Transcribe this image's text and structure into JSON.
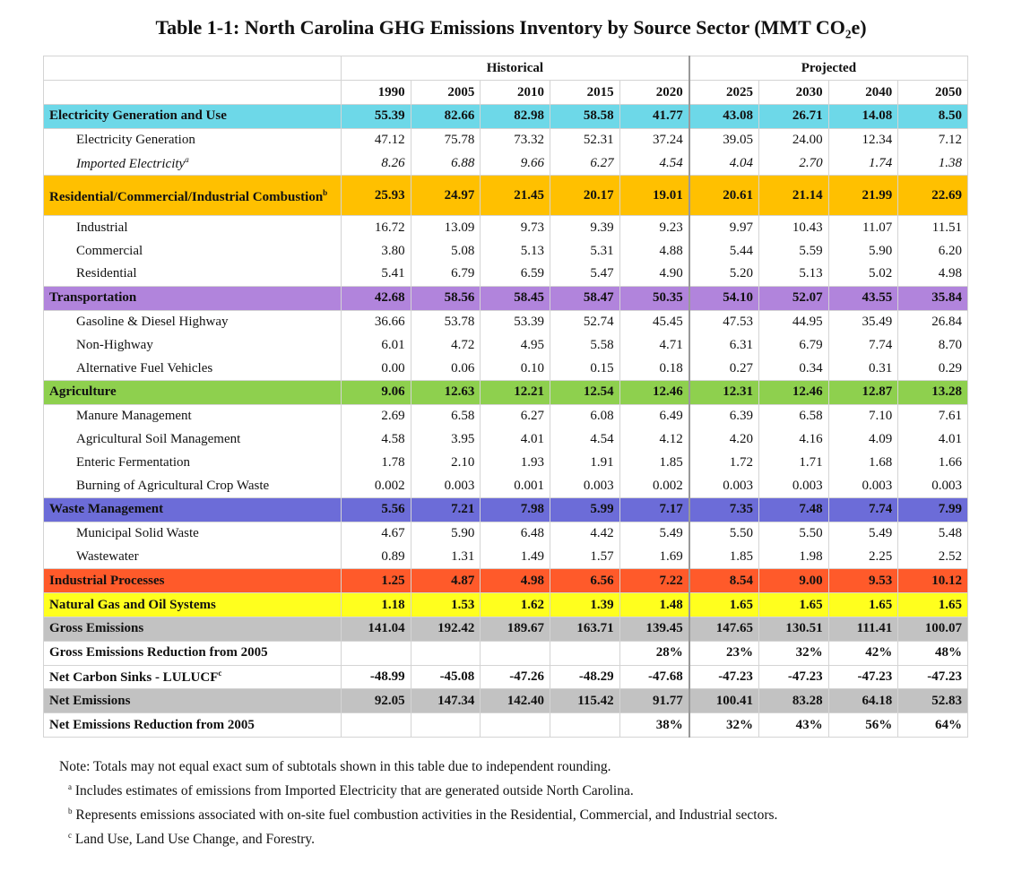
{
  "title": "Table 1-1:  North Carolina GHG Emissions Inventory by Source Sector (MMT CO₂e)",
  "groups": {
    "historical": "Historical",
    "projected": "Projected"
  },
  "years": [
    "1990",
    "2005",
    "2010",
    "2015",
    "2020",
    "2025",
    "2030",
    "2040",
    "2050"
  ],
  "colors": {
    "electricity": "#6dd8e8",
    "combustion": "#ffc000",
    "transportation": "#b184dc",
    "agriculture": "#8ed04e",
    "waste": "#6c6cd8",
    "industrial": "#ff5a2a",
    "natgas": "#ffff1e",
    "total": "#c2c2c2"
  },
  "rows": [
    {
      "label": "Electricity Generation and Use",
      "type": "sector",
      "color": "electricity",
      "values": [
        "55.39",
        "82.66",
        "82.98",
        "58.58",
        "41.77",
        "43.08",
        "26.71",
        "14.08",
        "8.50"
      ]
    },
    {
      "label": "Electricity Generation",
      "type": "sub",
      "values": [
        "47.12",
        "75.78",
        "73.32",
        "52.31",
        "37.24",
        "39.05",
        "24.00",
        "12.34",
        "7.12"
      ]
    },
    {
      "label": "Imported Electricity",
      "mark": "a",
      "type": "sub",
      "italic": true,
      "values": [
        "8.26",
        "6.88",
        "9.66",
        "6.27",
        "4.54",
        "4.04",
        "2.70",
        "1.74",
        "1.38"
      ]
    },
    {
      "label": "Residential/Commercial/Industrial Combustion",
      "mark": "b",
      "type": "sector",
      "double": true,
      "color": "combustion",
      "values": [
        "25.93",
        "24.97",
        "21.45",
        "20.17",
        "19.01",
        "20.61",
        "21.14",
        "21.99",
        "22.69"
      ]
    },
    {
      "label": "Industrial",
      "type": "sub",
      "values": [
        "16.72",
        "13.09",
        "9.73",
        "9.39",
        "9.23",
        "9.97",
        "10.43",
        "11.07",
        "11.51"
      ]
    },
    {
      "label": "Commercial",
      "type": "sub",
      "values": [
        "3.80",
        "5.08",
        "5.13",
        "5.31",
        "4.88",
        "5.44",
        "5.59",
        "5.90",
        "6.20"
      ]
    },
    {
      "label": "Residential",
      "type": "sub",
      "values": [
        "5.41",
        "6.79",
        "6.59",
        "5.47",
        "4.90",
        "5.20",
        "5.13",
        "5.02",
        "4.98"
      ]
    },
    {
      "label": "Transportation",
      "type": "sector",
      "color": "transportation",
      "values": [
        "42.68",
        "58.56",
        "58.45",
        "58.47",
        "50.35",
        "54.10",
        "52.07",
        "43.55",
        "35.84"
      ]
    },
    {
      "label": "Gasoline & Diesel Highway",
      "type": "sub",
      "values": [
        "36.66",
        "53.78",
        "53.39",
        "52.74",
        "45.45",
        "47.53",
        "44.95",
        "35.49",
        "26.84"
      ]
    },
    {
      "label": "Non-Highway",
      "type": "sub",
      "values": [
        "6.01",
        "4.72",
        "4.95",
        "5.58",
        "4.71",
        "6.31",
        "6.79",
        "7.74",
        "8.70"
      ]
    },
    {
      "label": "Alternative Fuel Vehicles",
      "type": "sub",
      "values": [
        "0.00",
        "0.06",
        "0.10",
        "0.15",
        "0.18",
        "0.27",
        "0.34",
        "0.31",
        "0.29"
      ]
    },
    {
      "label": "Agriculture",
      "type": "sector",
      "color": "agriculture",
      "values": [
        "9.06",
        "12.63",
        "12.21",
        "12.54",
        "12.46",
        "12.31",
        "12.46",
        "12.87",
        "13.28"
      ]
    },
    {
      "label": "Manure Management",
      "type": "sub",
      "values": [
        "2.69",
        "6.58",
        "6.27",
        "6.08",
        "6.49",
        "6.39",
        "6.58",
        "7.10",
        "7.61"
      ]
    },
    {
      "label": "Agricultural Soil Management",
      "type": "sub",
      "values": [
        "4.58",
        "3.95",
        "4.01",
        "4.54",
        "4.12",
        "4.20",
        "4.16",
        "4.09",
        "4.01"
      ]
    },
    {
      "label": "Enteric Fermentation",
      "type": "sub",
      "values": [
        "1.78",
        "2.10",
        "1.93",
        "1.91",
        "1.85",
        "1.72",
        "1.71",
        "1.68",
        "1.66"
      ]
    },
    {
      "label": "Burning of Agricultural Crop Waste",
      "type": "sub",
      "values": [
        "0.002",
        "0.003",
        "0.001",
        "0.003",
        "0.002",
        "0.003",
        "0.003",
        "0.003",
        "0.003"
      ]
    },
    {
      "label": "Waste Management",
      "type": "sector",
      "color": "waste",
      "values": [
        "5.56",
        "7.21",
        "7.98",
        "5.99",
        "7.17",
        "7.35",
        "7.48",
        "7.74",
        "7.99"
      ]
    },
    {
      "label": "Municipal Solid Waste",
      "type": "sub",
      "values": [
        "4.67",
        "5.90",
        "6.48",
        "4.42",
        "5.49",
        "5.50",
        "5.50",
        "5.49",
        "5.48"
      ]
    },
    {
      "label": "Wastewater",
      "type": "sub",
      "values": [
        "0.89",
        "1.31",
        "1.49",
        "1.57",
        "1.69",
        "1.85",
        "1.98",
        "2.25",
        "2.52"
      ]
    },
    {
      "label": "Industrial Processes",
      "type": "sector",
      "color": "industrial",
      "values": [
        "1.25",
        "4.87",
        "4.98",
        "6.56",
        "7.22",
        "8.54",
        "9.00",
        "9.53",
        "10.12"
      ]
    },
    {
      "label": "Natural Gas and Oil Systems",
      "type": "sector",
      "color": "natgas",
      "values": [
        "1.18",
        "1.53",
        "1.62",
        "1.39",
        "1.48",
        "1.65",
        "1.65",
        "1.65",
        "1.65"
      ]
    },
    {
      "label": "Gross Emissions",
      "type": "total",
      "color": "total",
      "values": [
        "141.04",
        "192.42",
        "189.67",
        "163.71",
        "139.45",
        "147.65",
        "130.51",
        "111.41",
        "100.07"
      ]
    },
    {
      "label": "Gross Emissions Reduction from 2005",
      "type": "summary",
      "values": [
        "",
        "",
        "",
        "",
        "28%",
        "23%",
        "32%",
        "42%",
        "48%"
      ]
    },
    {
      "label": "Net Carbon Sinks - LULUCF",
      "mark": "c",
      "type": "summary",
      "values": [
        "-48.99",
        "-45.08",
        "-47.26",
        "-48.29",
        "-47.68",
        "-47.23",
        "-47.23",
        "-47.23",
        "-47.23"
      ]
    },
    {
      "label": "Net Emissions",
      "type": "total",
      "color": "total",
      "values": [
        "92.05",
        "147.34",
        "142.40",
        "115.42",
        "91.77",
        "100.41",
        "83.28",
        "64.18",
        "52.83"
      ]
    },
    {
      "label": "Net Emissions Reduction from 2005",
      "type": "summary",
      "values": [
        "",
        "",
        "",
        "",
        "38%",
        "32%",
        "43%",
        "56%",
        "64%"
      ]
    }
  ],
  "notes": {
    "note": "Note: Totals may not equal exact sum of subtotals shown in this table due to independent rounding.",
    "footnotes": [
      {
        "mark": "a",
        "text": "Includes estimates of emissions from Imported Electricity that are generated outside North Carolina."
      },
      {
        "mark": "b",
        "text": "Represents emissions associated with on-site fuel combustion activities in the Residential, Commercial, and Industrial sectors."
      },
      {
        "mark": "c",
        "text": "Land Use, Land Use Change, and Forestry."
      }
    ]
  }
}
